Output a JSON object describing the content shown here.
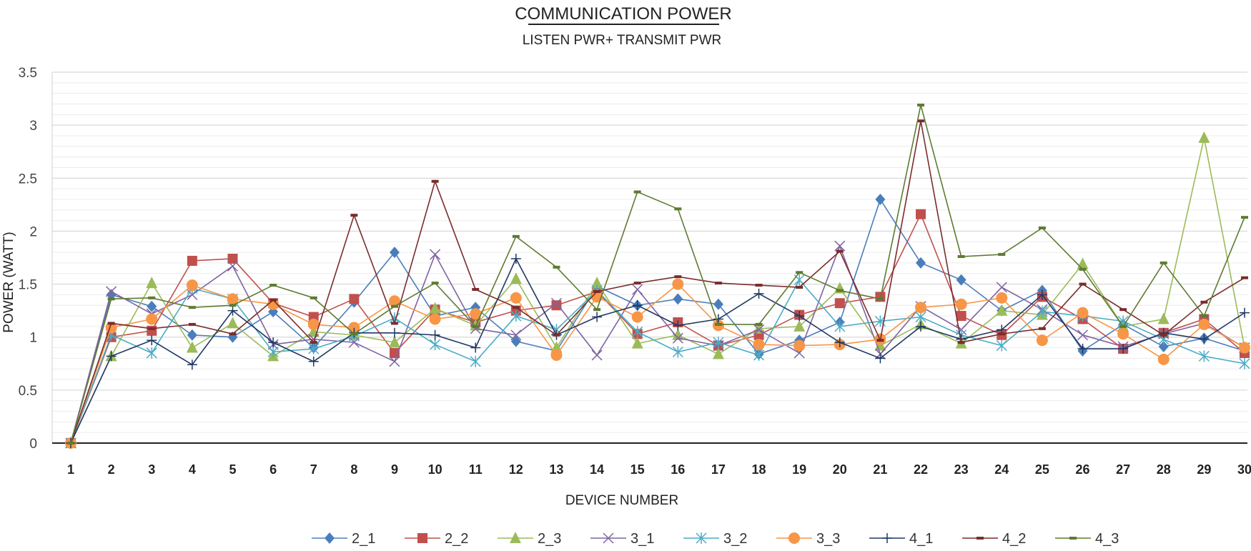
{
  "chart_data": {
    "type": "line",
    "title": "COMMUNICATION POWER",
    "subtitle": "LISTEN PWR+ TRANSMIT PWR",
    "xlabel": "DEVICE NUMBER",
    "ylabel": "POWER (WATT)",
    "ylim": [
      0,
      3.5
    ],
    "yticks": [
      "0",
      "0.5",
      "1",
      "1.5",
      "2",
      "2.5",
      "3",
      "3.5"
    ],
    "categories": [
      "1",
      "2",
      "3",
      "4",
      "5",
      "6",
      "7",
      "8",
      "9",
      "10",
      "11",
      "12",
      "13",
      "14",
      "15",
      "16",
      "17",
      "18",
      "19",
      "20",
      "21",
      "22",
      "23",
      "24",
      "25",
      "26",
      "27",
      "28",
      "29",
      "30"
    ],
    "series": [
      {
        "name": "2_1",
        "color": "#4a7ebb",
        "marker": "diamond",
        "values": [
          0,
          1.4,
          1.29,
          1.02,
          1.0,
          1.24,
          0.9,
          1.33,
          1.8,
          1.2,
          1.28,
          0.96,
          0.87,
          1.48,
          1.3,
          1.36,
          1.31,
          0.84,
          0.97,
          1.14,
          2.3,
          1.7,
          1.54,
          1.25,
          1.44,
          0.87,
          1.12,
          0.91,
          0.99,
          0.87
        ]
      },
      {
        "name": "2_2",
        "color": "#c0504d",
        "marker": "square",
        "values": [
          0,
          1.0,
          1.06,
          1.72,
          1.74,
          1.32,
          1.19,
          1.36,
          0.85,
          1.26,
          1.14,
          1.25,
          1.3,
          1.43,
          1.03,
          1.14,
          0.92,
          1.02,
          1.21,
          1.32,
          1.38,
          2.16,
          1.2,
          1.02,
          1.38,
          1.17,
          0.89,
          1.04,
          1.17,
          0.85
        ]
      },
      {
        "name": "2_3",
        "color": "#9bbb59",
        "marker": "triangle",
        "values": [
          0,
          0.82,
          1.51,
          0.9,
          1.13,
          0.82,
          1.05,
          1.02,
          0.95,
          1.27,
          1.11,
          1.55,
          0.9,
          1.51,
          0.94,
          1.02,
          0.84,
          1.08,
          1.1,
          1.46,
          0.92,
          1.12,
          0.94,
          1.25,
          1.21,
          1.69,
          1.1,
          1.17,
          2.88,
          0.9
        ]
      },
      {
        "name": "3_1",
        "color": "#8064a2",
        "marker": "x",
        "values": [
          0,
          1.43,
          1.22,
          1.4,
          1.67,
          0.93,
          0.98,
          0.95,
          0.77,
          1.78,
          1.08,
          1.02,
          1.32,
          0.83,
          1.45,
          0.99,
          0.92,
          1.07,
          0.85,
          1.86,
          0.84,
          1.29,
          1.07,
          1.47,
          1.26,
          1.02,
          0.91,
          1.03,
          1.13,
          0.9
        ]
      },
      {
        "name": "3_2",
        "color": "#4bacc6",
        "marker": "star",
        "values": [
          0,
          1.02,
          0.85,
          1.46,
          1.36,
          0.86,
          0.89,
          1.01,
          1.18,
          0.93,
          0.77,
          1.2,
          1.07,
          1.44,
          1.05,
          0.86,
          0.95,
          0.83,
          1.54,
          1.1,
          1.15,
          1.19,
          1.02,
          0.92,
          1.24,
          1.2,
          1.15,
          0.98,
          0.82,
          0.75
        ]
      },
      {
        "name": "3_3",
        "color": "#f79646",
        "marker": "circle",
        "values": [
          0,
          1.09,
          1.17,
          1.49,
          1.36,
          1.31,
          1.12,
          1.09,
          1.34,
          1.17,
          1.22,
          1.37,
          0.83,
          1.38,
          1.19,
          1.5,
          1.11,
          0.93,
          0.92,
          0.93,
          0.98,
          1.28,
          1.31,
          1.37,
          0.97,
          1.23,
          1.03,
          0.79,
          1.12,
          0.9
        ]
      },
      {
        "name": "4_1",
        "color": "#1f3864",
        "marker": "plus",
        "values": [
          0,
          0.82,
          0.97,
          0.74,
          1.25,
          0.95,
          0.77,
          1.04,
          1.04,
          1.02,
          0.9,
          1.74,
          1.02,
          1.19,
          1.3,
          1.11,
          1.17,
          1.41,
          1.2,
          0.95,
          0.8,
          1.1,
          0.98,
          1.07,
          1.4,
          0.89,
          0.89,
          1.04,
          0.98,
          1.23
        ]
      },
      {
        "name": "4_2",
        "color": "#7b2c2c",
        "marker": "dash",
        "values": [
          0,
          1.13,
          1.08,
          1.12,
          1.03,
          1.35,
          0.95,
          2.15,
          1.13,
          2.47,
          1.45,
          1.28,
          1.02,
          1.43,
          1.51,
          1.57,
          1.51,
          1.49,
          1.47,
          1.81,
          0.97,
          3.04,
          0.95,
          1.03,
          1.08,
          1.5,
          1.26,
          1.02,
          1.33,
          1.56
        ]
      },
      {
        "name": "4_3",
        "color": "#5e7b31",
        "marker": "dash",
        "values": [
          0,
          1.36,
          1.37,
          1.28,
          1.3,
          1.49,
          1.37,
          1.03,
          1.29,
          1.51,
          1.1,
          1.95,
          1.66,
          1.26,
          2.37,
          2.21,
          1.12,
          1.12,
          1.61,
          1.44,
          1.36,
          3.19,
          1.76,
          1.78,
          2.03,
          1.64,
          1.1,
          1.7,
          1.2,
          2.13
        ]
      }
    ]
  }
}
